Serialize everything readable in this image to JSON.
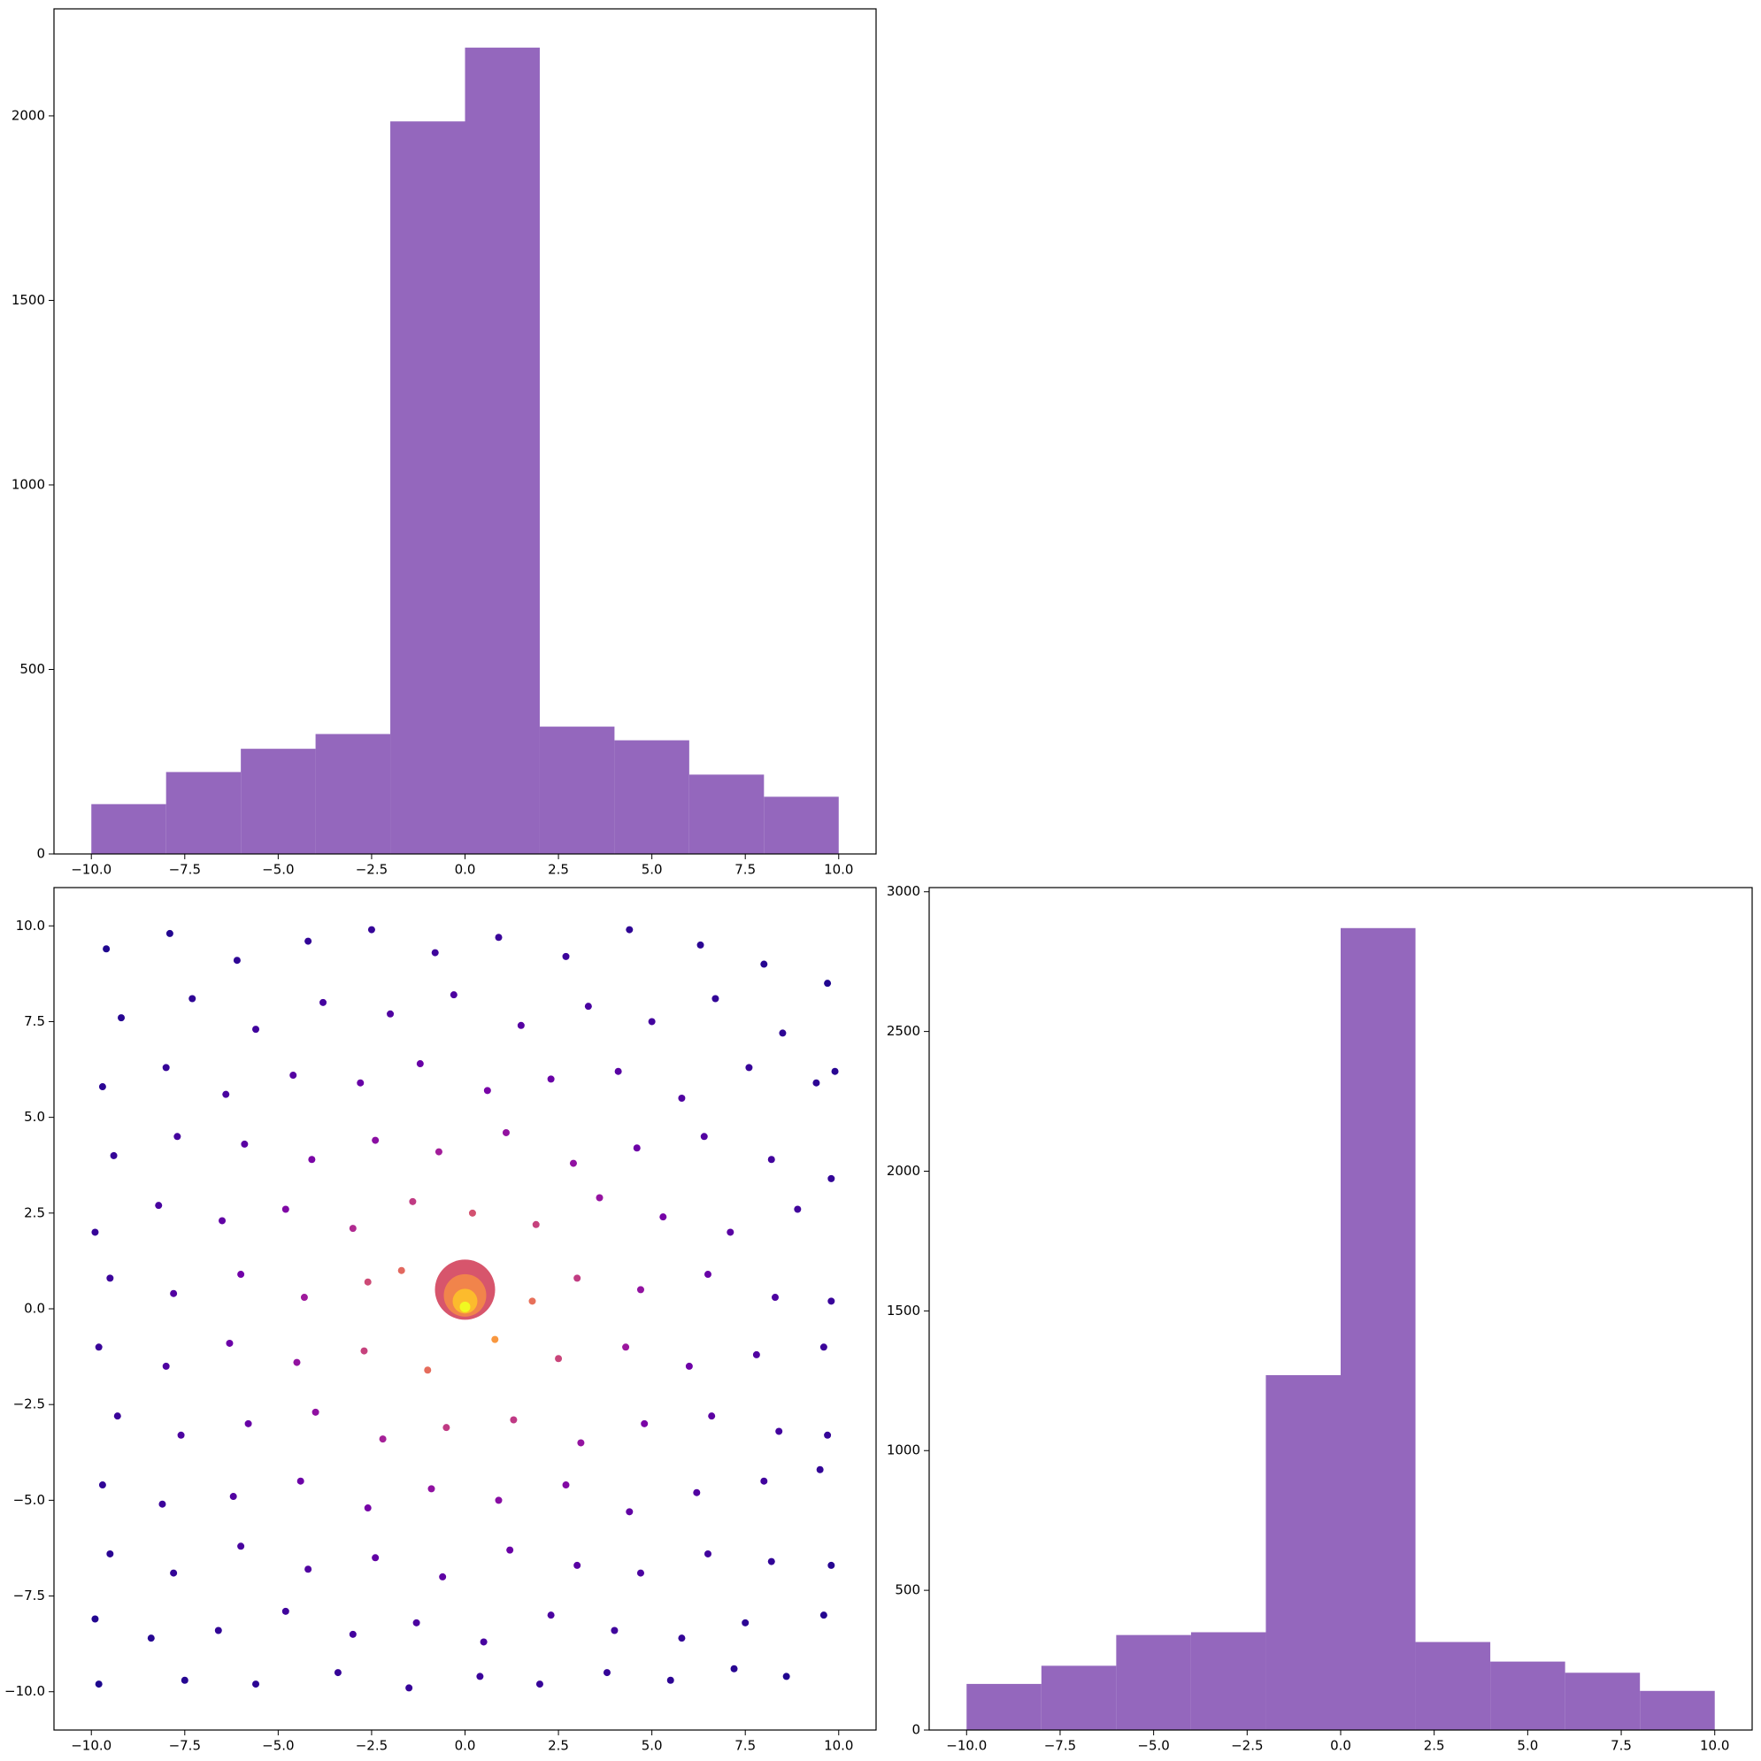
{
  "chart_data": [
    {
      "type": "histogram",
      "color": "#9467bd",
      "bins": [
        -10,
        -8,
        -6,
        -4,
        -2,
        0,
        2,
        4,
        6,
        8,
        10
      ],
      "values": [
        135,
        222,
        285,
        325,
        1985,
        2185,
        345,
        308,
        215,
        155
      ],
      "xlim": [
        -11,
        11
      ],
      "ylim": [
        0,
        2290
      ],
      "xticks": [
        {
          "value": -10,
          "label": "−10.0"
        },
        {
          "value": -7.5,
          "label": "−7.5"
        },
        {
          "value": -5,
          "label": "−5.0"
        },
        {
          "value": -2.5,
          "label": "−2.5"
        },
        {
          "value": 0,
          "label": "0.0"
        },
        {
          "value": 2.5,
          "label": "2.5"
        },
        {
          "value": 5,
          "label": "5.0"
        },
        {
          "value": 7.5,
          "label": "7.5"
        },
        {
          "value": 10,
          "label": "10.0"
        }
      ],
      "yticks": [
        0,
        500,
        1000,
        1500,
        2000
      ]
    },
    {
      "type": "scatter",
      "cmap": "plasma",
      "series": [
        {
          "marker_size": 4,
          "x": [
            -9.6,
            -7.9,
            -6.1,
            -4.2,
            -2.5,
            -0.8,
            0.9,
            2.7,
            4.4,
            6.3,
            8.0,
            9.7,
            -9.2,
            -7.3,
            -5.6,
            -3.8,
            -2.0,
            -0.3,
            1.5,
            3.3,
            5.0,
            6.7,
            8.5,
            9.9,
            -9.7,
            -8.0,
            -6.4,
            -4.6,
            -2.8,
            -1.2,
            0.6,
            2.3,
            4.1,
            5.8,
            7.6,
            9.4,
            -9.4,
            -7.7,
            -5.9,
            -4.1,
            -2.4,
            -0.7,
            1.1,
            2.9,
            4.6,
            6.4,
            8.2,
            9.8,
            -9.9,
            -8.2,
            -6.5,
            -4.8,
            -3.0,
            -1.4,
            0.2,
            1.9,
            3.6,
            5.3,
            7.1,
            8.9,
            -9.5,
            -7.8,
            -6.0,
            -4.3,
            -2.6,
            -1.7,
            1.8,
            3.0,
            4.7,
            6.5,
            8.3,
            9.8,
            -9.8,
            -8.0,
            -6.3,
            -4.5,
            -2.7,
            -1.0,
            0.8,
            2.5,
            4.3,
            6.0,
            7.8,
            9.6,
            -9.3,
            -7.6,
            -5.8,
            -4.0,
            -2.2,
            -0.5,
            1.3,
            3.1,
            4.8,
            6.6,
            8.4,
            9.7,
            -9.7,
            -8.1,
            -6.2,
            -4.4,
            -2.6,
            -0.9,
            0.9,
            2.7,
            4.4,
            6.2,
            8.0,
            9.5,
            -9.5,
            -7.8,
            -6.0,
            -4.2,
            -2.4,
            -0.6,
            1.2,
            3.0,
            4.7,
            6.5,
            8.2,
            9.8,
            -9.9,
            -8.4,
            -6.6,
            -4.8,
            -3.0,
            -1.3,
            0.5,
            2.3,
            4.0,
            5.8,
            7.5,
            9.6,
            -9.8,
            -7.5,
            -5.6,
            -3.4,
            -1.5,
            0.4,
            2.0,
            3.8,
            5.5,
            7.2,
            8.6
          ],
          "y": [
            9.4,
            9.8,
            9.1,
            9.6,
            9.9,
            9.3,
            9.7,
            9.2,
            9.9,
            9.5,
            9.0,
            8.5,
            7.6,
            8.1,
            7.3,
            8.0,
            7.7,
            8.2,
            7.4,
            7.9,
            7.5,
            8.1,
            7.2,
            6.2,
            5.8,
            6.3,
            5.6,
            6.1,
            5.9,
            6.4,
            5.7,
            6.0,
            6.2,
            5.5,
            6.3,
            5.9,
            4.0,
            4.5,
            4.3,
            3.9,
            4.4,
            4.1,
            4.6,
            3.8,
            4.2,
            4.5,
            3.9,
            3.4,
            2.0,
            2.7,
            2.3,
            2.6,
            2.1,
            2.8,
            2.5,
            2.2,
            2.9,
            2.4,
            2.0,
            2.6,
            0.8,
            0.4,
            0.9,
            0.3,
            0.7,
            1.0,
            0.2,
            0.8,
            0.5,
            0.9,
            0.3,
            0.2,
            -1.0,
            -1.5,
            -0.9,
            -1.4,
            -1.1,
            -1.6,
            -0.8,
            -1.3,
            -1.0,
            -1.5,
            -1.2,
            -1.0,
            -2.8,
            -3.3,
            -3.0,
            -2.7,
            -3.4,
            -3.1,
            -2.9,
            -3.5,
            -3.0,
            -2.8,
            -3.2,
            -3.3,
            -4.6,
            -5.1,
            -4.9,
            -4.5,
            -5.2,
            -4.7,
            -5.0,
            -4.6,
            -5.3,
            -4.8,
            -4.5,
            -4.2,
            -6.4,
            -6.9,
            -6.2,
            -6.8,
            -6.5,
            -7.0,
            -6.3,
            -6.7,
            -6.9,
            -6.4,
            -6.6,
            -6.7,
            -8.1,
            -8.6,
            -8.4,
            -7.9,
            -8.5,
            -8.2,
            -8.7,
            -8.0,
            -8.4,
            -8.6,
            -8.2,
            -8.0,
            -9.8,
            -9.7,
            -9.8,
            -9.5,
            -9.9,
            -9.6,
            -9.8,
            -9.5,
            -9.7,
            -9.4,
            -9.6
          ]
        },
        {
          "x": [
            0,
            0,
            0,
            0
          ],
          "y": [
            0.5,
            0.35,
            0.2,
            0.05
          ],
          "sizes": [
            34,
            24,
            14,
            6
          ]
        }
      ],
      "xlim": [
        -11,
        11
      ],
      "ylim": [
        -11,
        11
      ],
      "xticks": [
        {
          "value": -10,
          "label": "−10.0"
        },
        {
          "value": -7.5,
          "label": "−7.5"
        },
        {
          "value": -5,
          "label": "−5.0"
        },
        {
          "value": -2.5,
          "label": "−2.5"
        },
        {
          "value": 0,
          "label": "0.0"
        },
        {
          "value": 2.5,
          "label": "2.5"
        },
        {
          "value": 5,
          "label": "5.0"
        },
        {
          "value": 7.5,
          "label": "7.5"
        },
        {
          "value": 10,
          "label": "10.0"
        }
      ],
      "yticks": [
        {
          "value": -10,
          "label": "−10.0"
        },
        {
          "value": -7.5,
          "label": "−7.5"
        },
        {
          "value": -5,
          "label": "−5.0"
        },
        {
          "value": -2.5,
          "label": "−2.5"
        },
        {
          "value": 0,
          "label": "0.0"
        },
        {
          "value": 2.5,
          "label": "2.5"
        },
        {
          "value": 5,
          "label": "5.0"
        },
        {
          "value": 7.5,
          "label": "7.5"
        },
        {
          "value": 10,
          "label": "10.0"
        }
      ]
    },
    {
      "type": "histogram",
      "color": "#9467bd",
      "bins": [
        -10,
        -8,
        -6,
        -4,
        -2,
        0,
        2,
        4,
        6,
        8,
        10
      ],
      "values": [
        165,
        230,
        340,
        350,
        1270,
        2870,
        315,
        245,
        205,
        140
      ],
      "xlim": [
        -11,
        11
      ],
      "ylim": [
        0,
        3015
      ],
      "xticks": [
        {
          "value": -10,
          "label": "−10.0"
        },
        {
          "value": -7.5,
          "label": "−7.5"
        },
        {
          "value": -5,
          "label": "−5.0"
        },
        {
          "value": -2.5,
          "label": "−2.5"
        },
        {
          "value": 0,
          "label": "0.0"
        },
        {
          "value": 2.5,
          "label": "2.5"
        },
        {
          "value": 5,
          "label": "5.0"
        },
        {
          "value": 7.5,
          "label": "7.5"
        },
        {
          "value": 10,
          "label": "10.0"
        }
      ],
      "yticks": [
        0,
        500,
        1000,
        1500,
        2000,
        2500,
        3000
      ]
    }
  ]
}
